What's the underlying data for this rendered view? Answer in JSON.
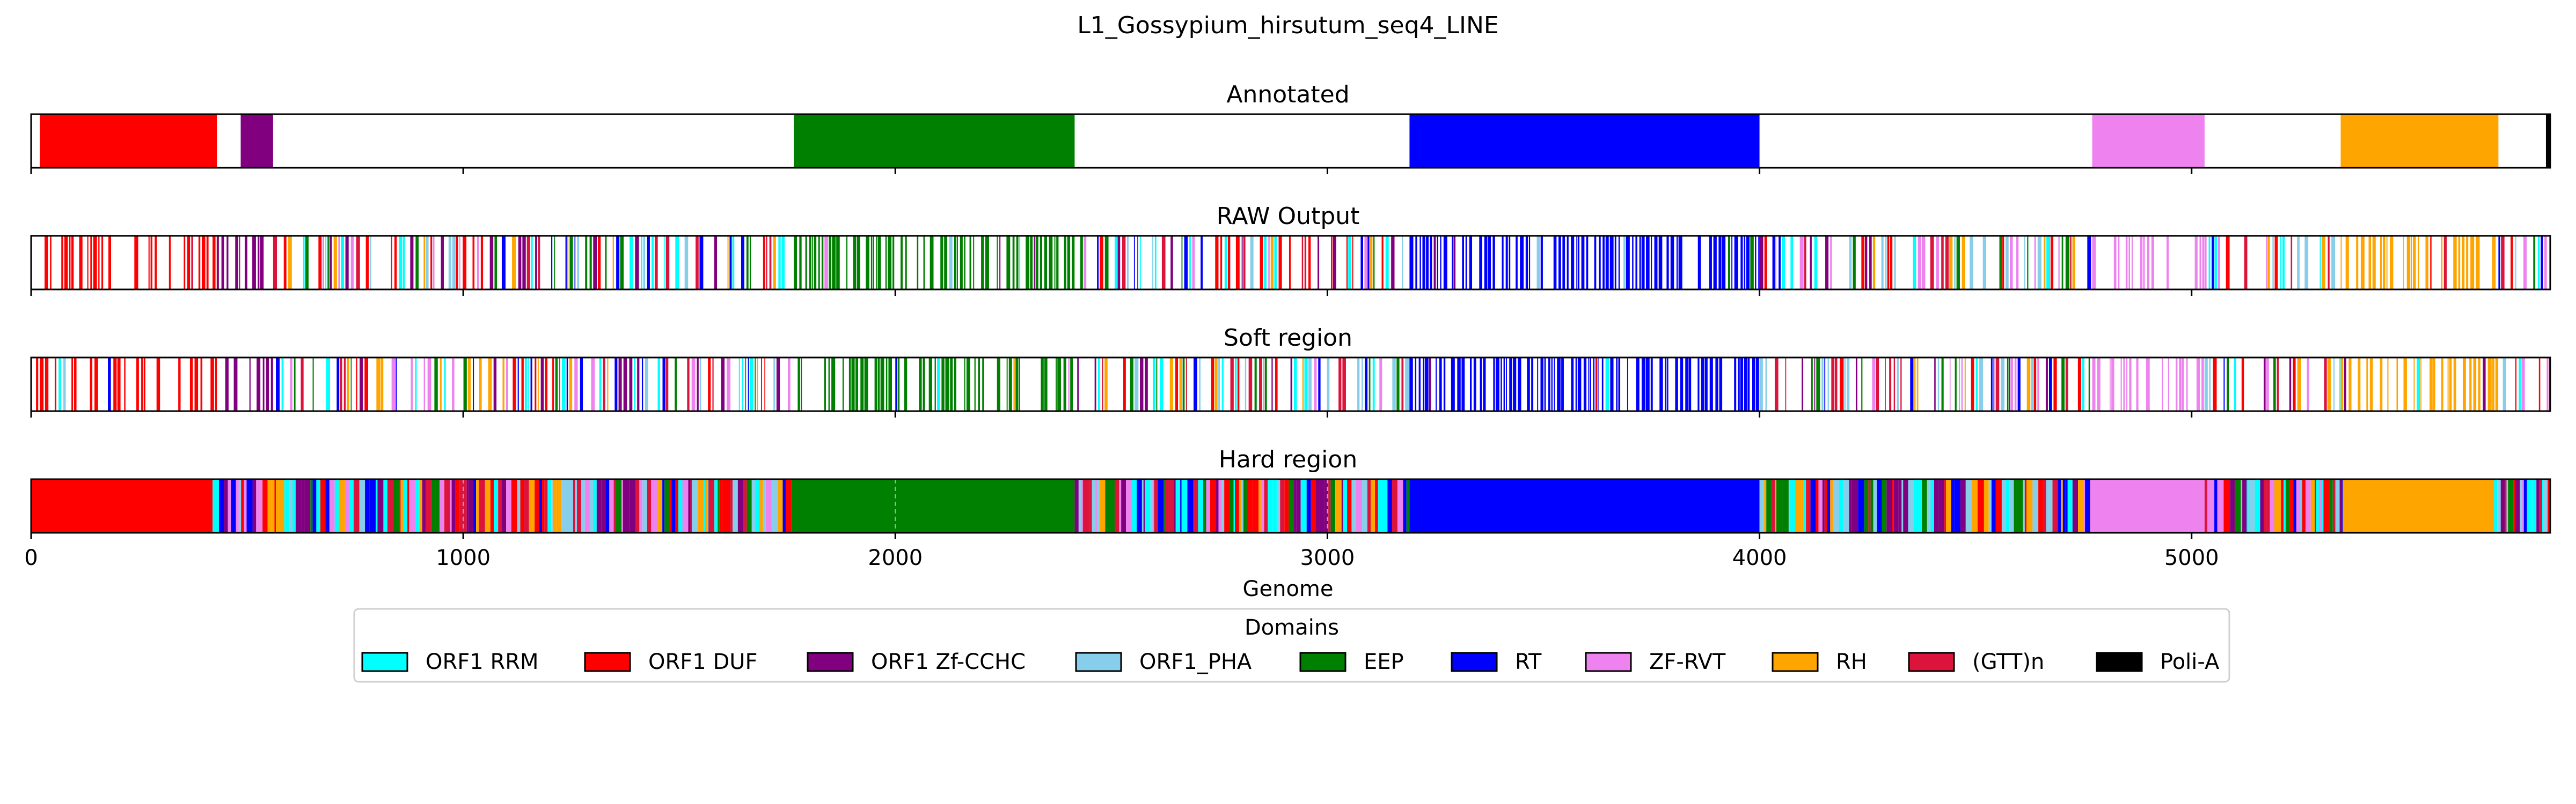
{
  "chart_data": {
    "type": "bar",
    "title": "L1_Gossypium_hirsutum_seq4_LINE",
    "xlabel": "Genome",
    "xlim": [
      0,
      5830
    ],
    "xticks": [
      0,
      1000,
      2000,
      3000,
      4000,
      5000
    ],
    "legend": {
      "title": "Domains",
      "placement": "bottom-center",
      "entries": [
        {
          "key": "orf1_rrm",
          "label": "ORF1 RRM",
          "color": "#00ffff"
        },
        {
          "key": "orf1_duf",
          "label": "ORF1 DUF",
          "color": "#ff0000"
        },
        {
          "key": "orf1_zf",
          "label": "ORF1 Zf-CCHC",
          "color": "#800080"
        },
        {
          "key": "orf1_pha",
          "label": "ORF1_PHA",
          "color": "#87ceeb"
        },
        {
          "key": "eep",
          "label": "EEP",
          "color": "#008000"
        },
        {
          "key": "rt",
          "label": "RT",
          "color": "#0000ff"
        },
        {
          "key": "zf_rvt",
          "label": "ZF-RVT",
          "color": "#ee82ee"
        },
        {
          "key": "rh",
          "label": "RH",
          "color": "#ffa500"
        },
        {
          "key": "gtt",
          "label": "(GTT)n",
          "color": "#dc143c"
        },
        {
          "key": "polia",
          "label": "Poli-A",
          "color": "#000000"
        }
      ]
    },
    "panels": [
      {
        "title": "Annotated",
        "segments": [
          {
            "domain": "orf1_duf",
            "start": 20,
            "end": 430
          },
          {
            "domain": "orf1_zf",
            "start": 485,
            "end": 560
          },
          {
            "domain": "eep",
            "start": 1765,
            "end": 2415
          },
          {
            "domain": "rt",
            "start": 3190,
            "end": 4000
          },
          {
            "domain": "zf_rvt",
            "start": 4770,
            "end": 5030
          },
          {
            "domain": "rh",
            "start": 5345,
            "end": 5710
          },
          {
            "domain": "polia",
            "start": 5820,
            "end": 5830
          }
        ]
      },
      {
        "title": "RAW Output",
        "regions": [
          {
            "start": 0,
            "end": 430,
            "domain": "orf1_duf",
            "fill": 0.55
          },
          {
            "start": 430,
            "end": 560,
            "domain": "orf1_zf",
            "fill": 0.55
          },
          {
            "start": 560,
            "end": 1765,
            "domain": "mixed",
            "fill": 0.65
          },
          {
            "start": 1765,
            "end": 2415,
            "domain": "eep",
            "fill": 0.7
          },
          {
            "start": 2415,
            "end": 3190,
            "domain": "mixed",
            "fill": 0.65
          },
          {
            "start": 3190,
            "end": 4000,
            "domain": "rt",
            "fill": 0.75
          },
          {
            "start": 4000,
            "end": 4770,
            "domain": "mixed",
            "fill": 0.65
          },
          {
            "start": 4770,
            "end": 5030,
            "domain": "zf_rvt",
            "fill": 0.5
          },
          {
            "start": 5030,
            "end": 5345,
            "domain": "mixed",
            "fill": 0.65
          },
          {
            "start": 5345,
            "end": 5710,
            "domain": "rh",
            "fill": 0.7
          },
          {
            "start": 5710,
            "end": 5830,
            "domain": "mixed",
            "fill": 0.65
          }
        ]
      },
      {
        "title": "Soft region",
        "regions": [
          {
            "start": 0,
            "end": 430,
            "domain": "orf1_duf",
            "fill": 0.55
          },
          {
            "start": 430,
            "end": 560,
            "domain": "orf1_zf",
            "fill": 0.55
          },
          {
            "start": 560,
            "end": 1765,
            "domain": "mixed",
            "fill": 0.65
          },
          {
            "start": 1765,
            "end": 2415,
            "domain": "eep",
            "fill": 0.7
          },
          {
            "start": 2415,
            "end": 3190,
            "domain": "mixed",
            "fill": 0.65
          },
          {
            "start": 3190,
            "end": 4000,
            "domain": "rt",
            "fill": 0.75
          },
          {
            "start": 4000,
            "end": 4770,
            "domain": "mixed",
            "fill": 0.65
          },
          {
            "start": 4770,
            "end": 5030,
            "domain": "zf_rvt",
            "fill": 0.5
          },
          {
            "start": 5030,
            "end": 5345,
            "domain": "mixed",
            "fill": 0.65
          },
          {
            "start": 5345,
            "end": 5710,
            "domain": "rh",
            "fill": 0.7
          },
          {
            "start": 5710,
            "end": 5830,
            "domain": "mixed",
            "fill": 0.65
          }
        ]
      },
      {
        "title": "Hard region",
        "segments": [
          {
            "domain": "orf1_duf",
            "start": 0,
            "end": 420
          },
          {
            "domain": "mixed",
            "start": 420,
            "end": 1760
          },
          {
            "domain": "eep",
            "start": 1760,
            "end": 2415
          },
          {
            "domain": "mixed",
            "start": 2415,
            "end": 3190
          },
          {
            "domain": "rt",
            "start": 3190,
            "end": 4000
          },
          {
            "domain": "mixed",
            "start": 4000,
            "end": 4765
          },
          {
            "domain": "zf_rvt",
            "start": 4765,
            "end": 5030
          },
          {
            "domain": "mixed",
            "start": 5030,
            "end": 5350
          },
          {
            "domain": "rh",
            "start": 5350,
            "end": 5700
          },
          {
            "domain": "mixed",
            "start": 5700,
            "end": 5830
          }
        ],
        "gridlines": [
          1000,
          2000,
          3000
        ]
      }
    ]
  }
}
